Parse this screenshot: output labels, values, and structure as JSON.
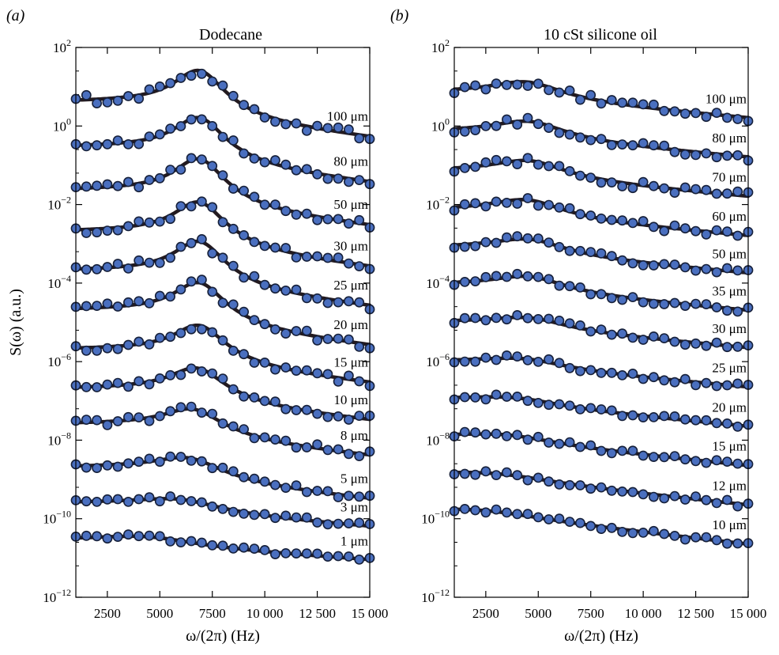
{
  "chart_data": [
    {
      "type": "scatter",
      "panel_label": "(a)",
      "title": "Dodecane",
      "xlabel": "ω/(2π) (Hz)",
      "ylabel": "S(ω) (a.u.)",
      "xlim": [
        1000,
        15000
      ],
      "ylim_log10": [
        -12,
        2
      ],
      "yscale": "log",
      "x_ticks": [
        2500,
        5000,
        7500,
        10000,
        12500,
        15000
      ],
      "x_tick_labels": [
        "2500",
        "5000",
        "7500",
        "10 000",
        "12 500",
        "15 000"
      ],
      "y_ticks_log10": [
        2,
        0,
        -2,
        -4,
        -6,
        -8,
        -10,
        -12
      ],
      "y_tick_labels": [
        {
          "base": "10",
          "exp": "2"
        },
        {
          "base": "10",
          "exp": "0"
        },
        {
          "base": "10",
          "exp": "−2"
        },
        {
          "base": "10",
          "exp": "−4"
        },
        {
          "base": "10",
          "exp": "−6"
        },
        {
          "base": "10",
          "exp": "−8"
        },
        {
          "base": "10",
          "exp": "−10"
        },
        {
          "base": "10",
          "exp": "−12"
        }
      ],
      "marker_color": "#4a6fbf",
      "line_color": "#231a1f",
      "series": [
        {
          "name": "100 μm",
          "peak_x": 6900,
          "width": 1500,
          "base_log10": 0.6,
          "peak_amp_log10": 1.0,
          "tail_log10": -0.9,
          "noise": 0.12
        },
        {
          "name": "80 μm",
          "peak_x": 6900,
          "width": 1500,
          "base_log10": -0.55,
          "peak_amp_log10": 0.95,
          "tail_log10": -0.9,
          "noise": 0.1
        },
        {
          "name": "50 μm",
          "peak_x": 6900,
          "width": 1500,
          "base_log10": -1.65,
          "peak_amp_log10": 1.0,
          "tail_log10": -0.9,
          "noise": 0.1
        },
        {
          "name": "30 μm",
          "peak_x": 6900,
          "width": 1500,
          "base_log10": -2.7,
          "peak_amp_log10": 0.95,
          "tail_log10": -0.9,
          "noise": 0.1
        },
        {
          "name": "25 μm",
          "peak_x": 6900,
          "width": 1500,
          "base_log10": -3.7,
          "peak_amp_log10": 0.95,
          "tail_log10": -0.9,
          "noise": 0.12
        },
        {
          "name": "20 μm",
          "peak_x": 6900,
          "width": 1500,
          "base_log10": -4.7,
          "peak_amp_log10": 0.9,
          "tail_log10": -0.9,
          "noise": 0.1
        },
        {
          "name": "15 μm",
          "peak_x": 6900,
          "width": 1500,
          "base_log10": -5.7,
          "peak_amp_log10": 0.8,
          "tail_log10": -0.85,
          "noise": 0.1
        },
        {
          "name": "10 μm",
          "peak_x": 6800,
          "width": 1600,
          "base_log10": -6.7,
          "peak_amp_log10": 0.7,
          "tail_log10": -0.8,
          "noise": 0.1
        },
        {
          "name": "8 μm",
          "peak_x": 6600,
          "width": 1700,
          "base_log10": -7.6,
          "peak_amp_log10": 0.55,
          "tail_log10": -0.8,
          "noise": 0.1
        },
        {
          "name": "5 μm",
          "peak_x": 6400,
          "width": 1900,
          "base_log10": -8.7,
          "peak_amp_log10": 0.4,
          "tail_log10": -0.8,
          "noise": 0.08
        },
        {
          "name": "3 μm",
          "peak_x": 6000,
          "width": 2200,
          "base_log10": -9.6,
          "peak_amp_log10": 0.2,
          "tail_log10": -0.6,
          "noise": 0.07
        },
        {
          "name": "1 μm",
          "peak_x": 4500,
          "width": 2800,
          "base_log10": -10.55,
          "peak_amp_log10": 0.15,
          "tail_log10": -0.5,
          "noise": 0.06
        }
      ]
    },
    {
      "type": "scatter",
      "panel_label": "(b)",
      "title": "10 cSt silicone oil",
      "xlabel": "ω/(2π) (Hz)",
      "ylabel": "",
      "xlim": [
        1000,
        15000
      ],
      "ylim_log10": [
        -12,
        2
      ],
      "yscale": "log",
      "x_ticks": [
        2500,
        5000,
        7500,
        10000,
        12500,
        15000
      ],
      "x_tick_labels": [
        "2500",
        "5000",
        "7500",
        "10 000",
        "12 500",
        "15 000"
      ],
      "y_ticks_log10": [
        2,
        0,
        -2,
        -4,
        -6,
        -8,
        -10,
        -12
      ],
      "y_tick_labels": [
        {
          "base": "10",
          "exp": "2"
        },
        {
          "base": "10",
          "exp": "0"
        },
        {
          "base": "10",
          "exp": "−2"
        },
        {
          "base": "10",
          "exp": "−4"
        },
        {
          "base": "10",
          "exp": "−6"
        },
        {
          "base": "10",
          "exp": "−8"
        },
        {
          "base": "10",
          "exp": "−10"
        },
        {
          "base": "10",
          "exp": "−12"
        }
      ],
      "marker_color": "#4a6fbf",
      "line_color": "#231a1f",
      "series": [
        {
          "name": "100 μm",
          "peak_x": 4500,
          "width": 2000,
          "base_log10": 0.85,
          "peak_amp_log10": 0.35,
          "tail_log10": -0.65,
          "noise": 0.1
        },
        {
          "name": "80 μm",
          "peak_x": 4600,
          "width": 2000,
          "base_log10": -0.15,
          "peak_amp_log10": 0.35,
          "tail_log10": -0.65,
          "noise": 0.1
        },
        {
          "name": "70 μm",
          "peak_x": 4600,
          "width": 2000,
          "base_log10": -1.15,
          "peak_amp_log10": 0.35,
          "tail_log10": -0.65,
          "noise": 0.1
        },
        {
          "name": "60 μm",
          "peak_x": 4500,
          "width": 2000,
          "base_log10": -2.15,
          "peak_amp_log10": 0.35,
          "tail_log10": -0.65,
          "noise": 0.1
        },
        {
          "name": "50 μm",
          "peak_x": 4600,
          "width": 2000,
          "base_log10": -3.1,
          "peak_amp_log10": 0.3,
          "tail_log10": -0.65,
          "noise": 0.08
        },
        {
          "name": "35 μm",
          "peak_x": 4600,
          "width": 2000,
          "base_log10": -4.05,
          "peak_amp_log10": 0.3,
          "tail_log10": -0.65,
          "noise": 0.08
        },
        {
          "name": "30 μm",
          "peak_x": 4600,
          "width": 2000,
          "base_log10": -5.0,
          "peak_amp_log10": 0.2,
          "tail_log10": -0.65,
          "noise": 0.08
        },
        {
          "name": "25 μm",
          "peak_x": 4400,
          "width": 2200,
          "base_log10": -6.0,
          "peak_amp_log10": 0.15,
          "tail_log10": -0.65,
          "noise": 0.08
        },
        {
          "name": "20 μm",
          "peak_x": 4000,
          "width": 2300,
          "base_log10": -6.95,
          "peak_amp_log10": 0.1,
          "tail_log10": -0.7,
          "noise": 0.07
        },
        {
          "name": "15 μm",
          "peak_x": 3600,
          "width": 2500,
          "base_log10": -7.9,
          "peak_amp_log10": 0.1,
          "tail_log10": -0.75,
          "noise": 0.07
        },
        {
          "name": "12 μm",
          "peak_x": 3200,
          "width": 2600,
          "base_log10": -8.85,
          "peak_amp_log10": 0.05,
          "tail_log10": -0.8,
          "noise": 0.07
        },
        {
          "name": "10 μm",
          "peak_x": 2500,
          "width": 3000,
          "base_log10": -9.8,
          "peak_amp_log10": 0.05,
          "tail_log10": -0.85,
          "noise": 0.07
        }
      ]
    }
  ]
}
